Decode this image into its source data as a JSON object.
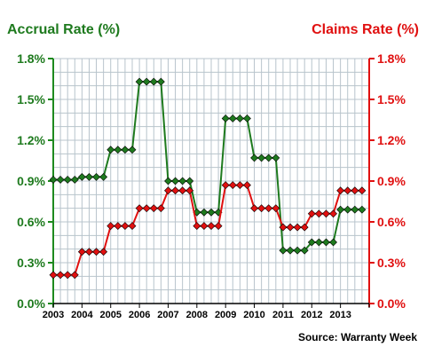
{
  "chart_data": {
    "type": "line",
    "left_title": "Accrual Rate (%)",
    "right_title": "Claims Rate (%)",
    "source": "Source: Warranty Week",
    "ylim": [
      0,
      1.8
    ],
    "y_ticks": [
      "0.0%",
      "0.3%",
      "0.6%",
      "0.9%",
      "1.2%",
      "1.5%",
      "1.8%"
    ],
    "y_tick_values": [
      0,
      0.3,
      0.6,
      0.9,
      1.2,
      1.5,
      1.8
    ],
    "x_labels": [
      "2003",
      "2004",
      "2005",
      "2006",
      "2007",
      "2008",
      "2009",
      "2010",
      "2011",
      "2012",
      "2013"
    ],
    "xlim": [
      2003,
      2014
    ],
    "grid": true,
    "colors": {
      "accrual": "#1e7a1e",
      "claims": "#e01010",
      "grid": "#b8c4cc",
      "axis_left": "#1e8a1e",
      "axis_right": "#e01010"
    },
    "series": [
      {
        "name": "Accrual Rate (%)",
        "x": [
          2003.0,
          2003.25,
          2003.5,
          2003.75,
          2004.0,
          2004.25,
          2004.5,
          2004.75,
          2005.0,
          2005.25,
          2005.5,
          2005.75,
          2006.0,
          2006.25,
          2006.5,
          2006.75,
          2007.0,
          2007.25,
          2007.5,
          2007.75,
          2008.0,
          2008.25,
          2008.5,
          2008.75,
          2009.0,
          2009.25,
          2009.5,
          2009.75,
          2010.0,
          2010.25,
          2010.5,
          2010.75,
          2011.0,
          2011.25,
          2011.5,
          2011.75,
          2012.0,
          2012.25,
          2012.5,
          2012.75,
          2013.0,
          2013.25,
          2013.5,
          2013.75
        ],
        "values": [
          0.91,
          0.91,
          0.91,
          0.91,
          0.93,
          0.93,
          0.93,
          0.93,
          1.13,
          1.13,
          1.13,
          1.13,
          1.63,
          1.63,
          1.63,
          1.63,
          0.9,
          0.9,
          0.9,
          0.9,
          0.67,
          0.67,
          0.67,
          0.67,
          1.36,
          1.36,
          1.36,
          1.36,
          1.07,
          1.07,
          1.07,
          1.07,
          0.39,
          0.39,
          0.39,
          0.39,
          0.45,
          0.45,
          0.45,
          0.45,
          0.69,
          0.69,
          0.69,
          0.69
        ]
      },
      {
        "name": "Claims Rate (%)",
        "x": [
          2003.0,
          2003.25,
          2003.5,
          2003.75,
          2004.0,
          2004.25,
          2004.5,
          2004.75,
          2005.0,
          2005.25,
          2005.5,
          2005.75,
          2006.0,
          2006.25,
          2006.5,
          2006.75,
          2007.0,
          2007.25,
          2007.5,
          2007.75,
          2008.0,
          2008.25,
          2008.5,
          2008.75,
          2009.0,
          2009.25,
          2009.5,
          2009.75,
          2010.0,
          2010.25,
          2010.5,
          2010.75,
          2011.0,
          2011.25,
          2011.5,
          2011.75,
          2012.0,
          2012.25,
          2012.5,
          2012.75,
          2013.0,
          2013.25,
          2013.5,
          2013.75
        ],
        "values": [
          0.21,
          0.21,
          0.21,
          0.21,
          0.38,
          0.38,
          0.38,
          0.38,
          0.57,
          0.57,
          0.57,
          0.57,
          0.7,
          0.7,
          0.7,
          0.7,
          0.83,
          0.83,
          0.83,
          0.83,
          0.57,
          0.57,
          0.57,
          0.57,
          0.87,
          0.87,
          0.87,
          0.87,
          0.7,
          0.7,
          0.7,
          0.7,
          0.56,
          0.56,
          0.56,
          0.56,
          0.66,
          0.66,
          0.66,
          0.66,
          0.83,
          0.83,
          0.83,
          0.83
        ]
      }
    ]
  }
}
